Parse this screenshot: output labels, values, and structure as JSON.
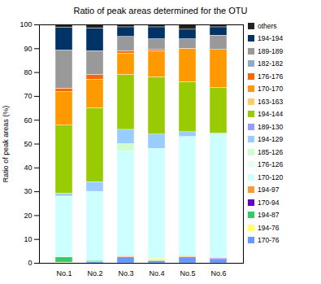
{
  "chart_data": {
    "type": "bar",
    "stacked": true,
    "title": "Ratio of peak areas determined for the OTU",
    "y_label": "Ratio of peak areas (%)",
    "categories": [
      "No.1",
      "No.2",
      "No.3",
      "No.4",
      "No.5",
      "No.6"
    ],
    "ylim": [
      0,
      100
    ],
    "yticks": [
      0,
      10,
      20,
      30,
      40,
      50,
      60,
      70,
      80,
      90,
      100
    ],
    "grid": false,
    "legend": "right",
    "series": [
      {
        "name": "170-76",
        "color": "#6699ff",
        "values": [
          0,
          0.5,
          2.5,
          1,
          2.5,
          1.5
        ]
      },
      {
        "name": "194-76",
        "color": "#ffff66",
        "values": [
          0.3,
          0,
          0,
          1,
          0,
          0
        ]
      },
      {
        "name": "194-87",
        "color": "#33cc66",
        "values": [
          2.2,
          0.5,
          0,
          0,
          0,
          0
        ]
      },
      {
        "name": "170-94",
        "color": "#6600cc",
        "values": [
          0,
          0,
          0,
          0,
          0,
          0.5
        ]
      },
      {
        "name": "194-97",
        "color": "#ff9933",
        "values": [
          0,
          0,
          0.5,
          0,
          0.5,
          0
        ]
      },
      {
        "name": "170-120",
        "color": "#ccffff",
        "values": [
          25.5,
          29,
          44,
          46,
          50,
          52
        ]
      },
      {
        "name": "176-126",
        "color": "#e6fff0",
        "values": [
          0,
          0,
          0,
          0,
          0,
          0
        ]
      },
      {
        "name": "185-126",
        "color": "#ccffcc",
        "values": [
          0,
          0,
          3,
          0,
          0,
          0
        ]
      },
      {
        "name": "194-129",
        "color": "#99ccff",
        "values": [
          1.3,
          4,
          6,
          6,
          2,
          0.5
        ]
      },
      {
        "name": "189-130",
        "color": "#9999ff",
        "values": [
          0,
          0,
          0,
          0,
          0,
          0
        ]
      },
      {
        "name": "194-144",
        "color": "#99cc00",
        "values": [
          28.5,
          31,
          23,
          24,
          21,
          19
        ]
      },
      {
        "name": "163-163",
        "color": "#ffcc66",
        "values": [
          0,
          0,
          0,
          0,
          0,
          0
        ]
      },
      {
        "name": "170-170",
        "color": "#ff9900",
        "values": [
          14,
          12,
          9,
          11,
          14,
          16
        ]
      },
      {
        "name": "176-176",
        "color": "#ff6600",
        "values": [
          1.5,
          2,
          1,
          0.5,
          0,
          0
        ]
      },
      {
        "name": "182-182",
        "color": "#8eaacc",
        "values": [
          0,
          0,
          0,
          0,
          0,
          0
        ]
      },
      {
        "name": "189-189",
        "color": "#999999",
        "values": [
          16,
          10,
          6,
          4.5,
          4,
          6
        ]
      },
      {
        "name": "194-194",
        "color": "#003366",
        "values": [
          9.5,
          9.5,
          4,
          5,
          4,
          3.5
        ]
      },
      {
        "name": "others",
        "color": "#222222",
        "values": [
          1,
          1.5,
          1,
          1,
          2,
          1
        ]
      }
    ]
  }
}
